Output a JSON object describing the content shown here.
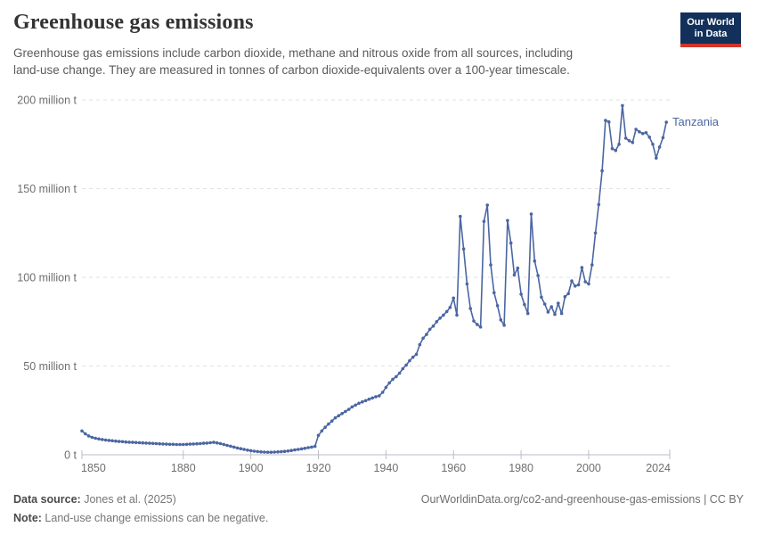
{
  "header": {
    "title": "Greenhouse gas emissions",
    "subtitle_lines": [
      "Greenhouse gas emissions include carbon dioxide, methane and nitrous oxide from all sources, including",
      "land-use change. They are measured in tonnes of carbon dioxide-equivalents over a 100-year timescale."
    ],
    "logo": {
      "line1": "Our World",
      "line2": "in Data"
    }
  },
  "footer": {
    "source_label": "Data source:",
    "source_value": " Jones et al. (2025)",
    "link": "OurWorldinData.org/co2-and-greenhouse-gas-emissions | CC BY",
    "note_label": "Note:",
    "note_value": " Land-use change emissions can be negative."
  },
  "colors": {
    "series_blue": "#4b66a2",
    "gridline": "#e2e2e2",
    "axis_line": "#b9bec4",
    "axis_text": "#6e6e6e",
    "logo_navy": "#12305a",
    "logo_red": "#d0352b"
  },
  "chart_data": {
    "type": "line",
    "title": "Greenhouse gas emissions",
    "entity": "Tanzania",
    "value_unit": "million t",
    "x_start_year": 1850,
    "x_axis_max": 2024,
    "x_ticks": [
      1850,
      1880,
      1900,
      1920,
      1940,
      1960,
      1980,
      2000,
      2024
    ],
    "ylim": [
      0,
      200
    ],
    "y_ticks": [
      {
        "value": 0,
        "label": "0 t"
      },
      {
        "value": 50,
        "label": "50 million t"
      },
      {
        "value": 100,
        "label": "100 million t"
      },
      {
        "value": 150,
        "label": "150 million t"
      },
      {
        "value": 200,
        "label": "200 million t"
      }
    ],
    "grid": true,
    "legend_position": "end-of-line-label",
    "series": [
      {
        "name": "Tanzania",
        "start_year": 1850,
        "end_year": 2023,
        "values": [
          13.4,
          11.8,
          10.6,
          9.8,
          9.3,
          8.9,
          8.6,
          8.3,
          8.1,
          7.9,
          7.7,
          7.5,
          7.4,
          7.2,
          7.1,
          7.0,
          6.9,
          6.8,
          6.7,
          6.6,
          6.5,
          6.4,
          6.3,
          6.2,
          6.1,
          6.0,
          5.9,
          5.9,
          5.8,
          5.8,
          5.8,
          5.9,
          6.0,
          6.1,
          6.2,
          6.3,
          6.5,
          6.6,
          6.8,
          7.0,
          6.7,
          6.3,
          5.8,
          5.3,
          4.8,
          4.3,
          3.8,
          3.4,
          3.0,
          2.6,
          2.3,
          2.0,
          1.8,
          1.6,
          1.5,
          1.4,
          1.4,
          1.5,
          1.6,
          1.7,
          1.9,
          2.1,
          2.4,
          2.7,
          3.0,
          3.3,
          3.6,
          4.0,
          4.3,
          4.7,
          10.9,
          13.4,
          15.5,
          17.3,
          19.0,
          20.8,
          22.0,
          23.2,
          24.4,
          25.6,
          27.0,
          28.0,
          29.0,
          29.8,
          30.5,
          31.3,
          32.0,
          32.7,
          33.2,
          35.2,
          38.0,
          40.5,
          42.5,
          44.0,
          46.0,
          48.5,
          50.5,
          53.0,
          55.0,
          56.6,
          62.0,
          65.7,
          67.8,
          70.7,
          72.5,
          75.0,
          77.0,
          78.7,
          80.7,
          83.0,
          88.3,
          78.7,
          134.3,
          116.0,
          96.3,
          82.4,
          75.4,
          73.4,
          72.0,
          131.5,
          140.7,
          107.0,
          91.3,
          84.0,
          76.0,
          73.0,
          132.0,
          119.3,
          101.3,
          105.2,
          90.5,
          84.6,
          79.6,
          135.7,
          109.2,
          101.0,
          88.8,
          84.9,
          80.4,
          83.4,
          79.1,
          85.4,
          79.6,
          89.1,
          90.8,
          98.0,
          95.1,
          95.8,
          105.5,
          97.5,
          96.3,
          107.0,
          125.0,
          141.0,
          160.0,
          188.4,
          187.6,
          172.5,
          171.5,
          175.0,
          196.8,
          178.4,
          177.0,
          176.0,
          183.4,
          182.0,
          181.0,
          181.5,
          179.0,
          175.0,
          167.2,
          173.4,
          178.7,
          187.4
        ]
      }
    ]
  }
}
